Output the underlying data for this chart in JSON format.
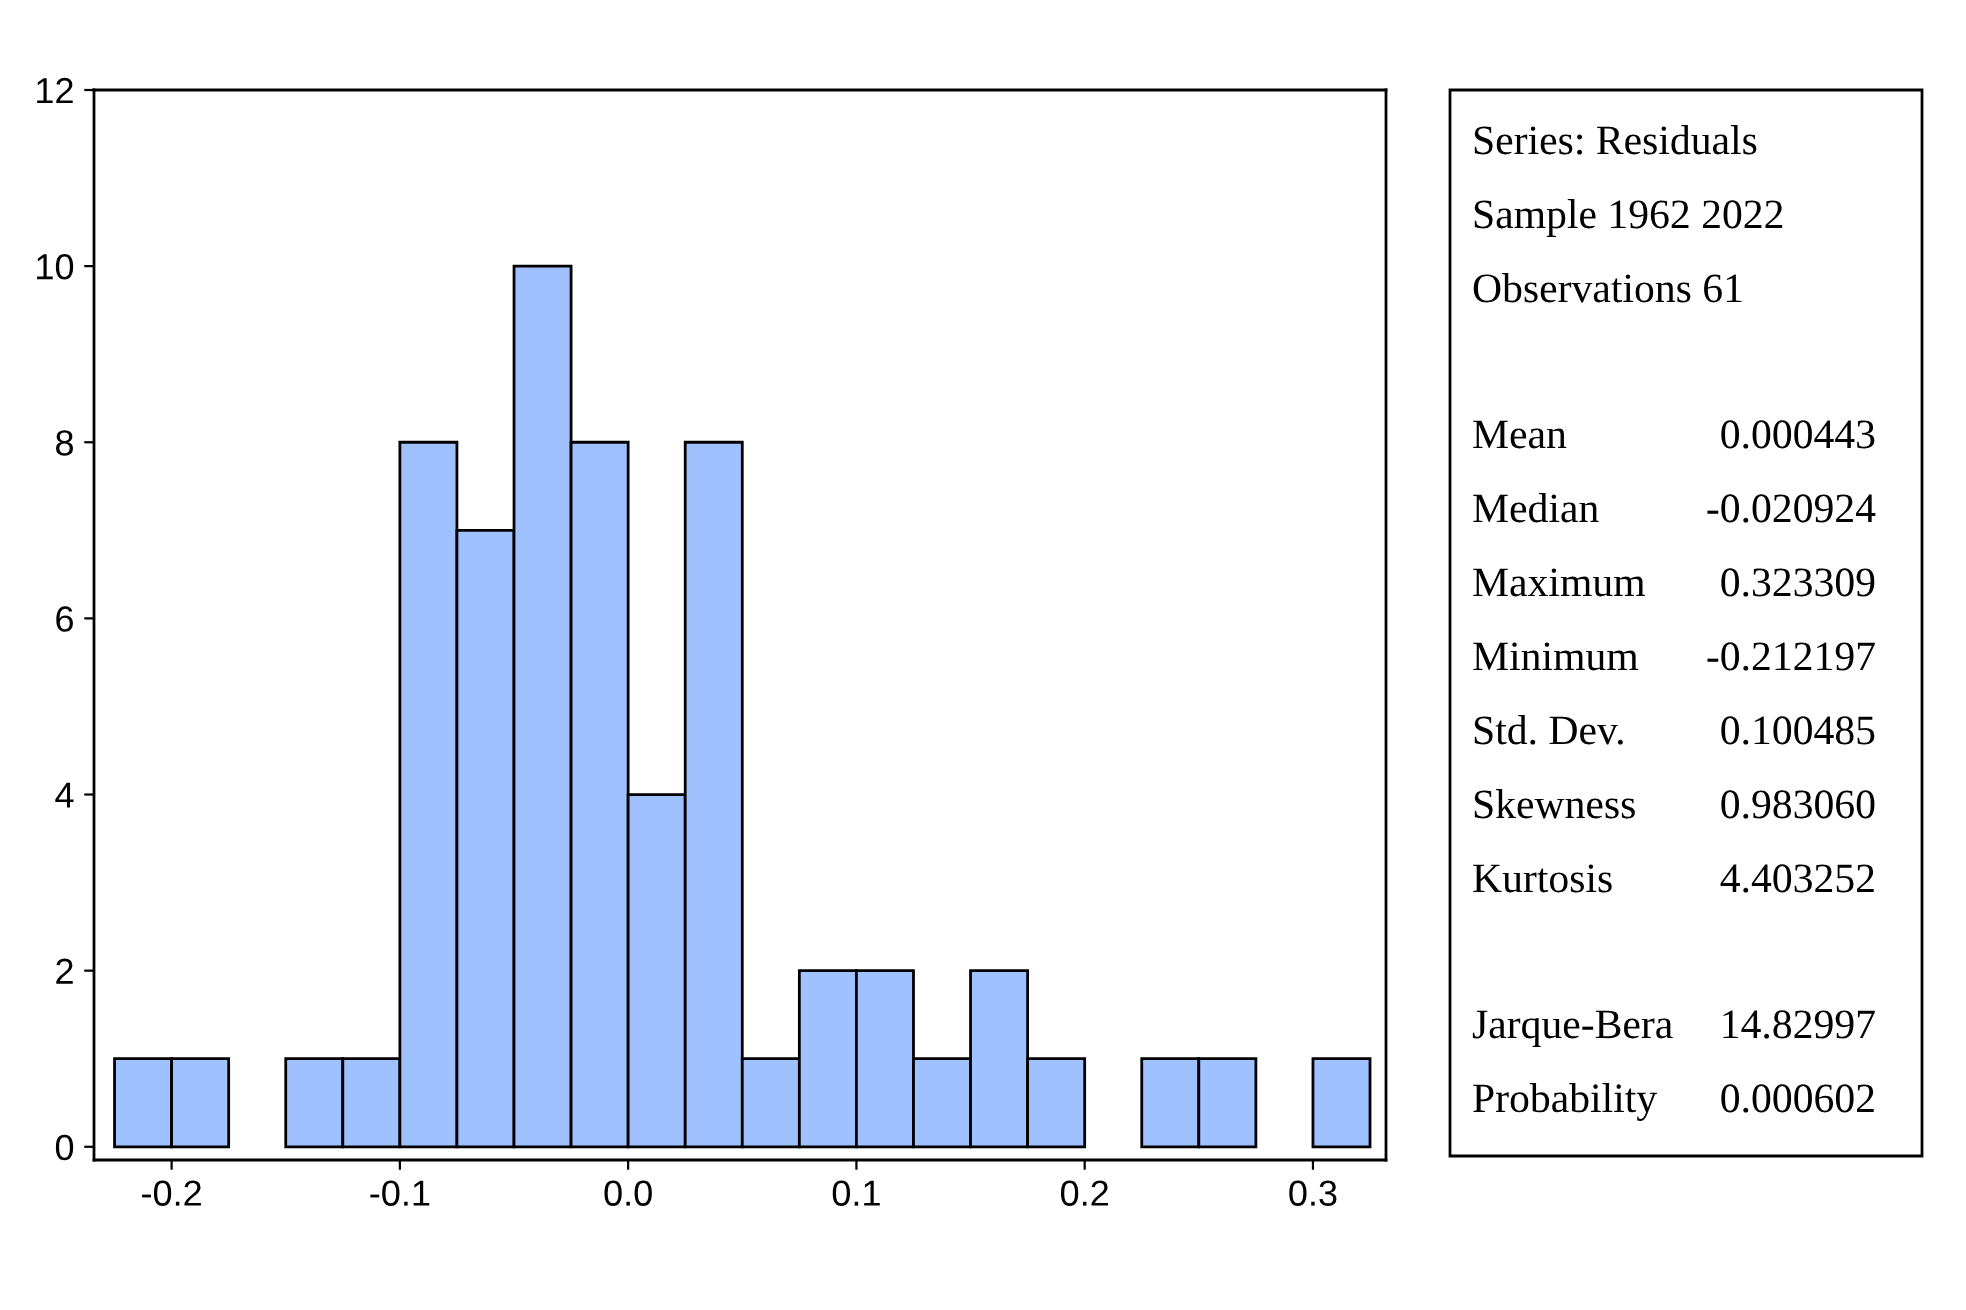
{
  "chart_data": {
    "type": "histogram",
    "bins": [
      -0.225,
      -0.2,
      -0.175,
      -0.15,
      -0.125,
      -0.1,
      -0.075,
      -0.05,
      -0.025,
      0.0,
      0.025,
      0.05,
      0.075,
      0.1,
      0.125,
      0.15,
      0.175,
      0.2,
      0.225,
      0.25,
      0.275,
      0.3,
      0.325
    ],
    "values": [
      1,
      1,
      0,
      1,
      1,
      8,
      7,
      10,
      8,
      4,
      8,
      1,
      2,
      2,
      1,
      2,
      1,
      0,
      1,
      1,
      0,
      1
    ],
    "color": "#9fc1ff",
    "xlim": [
      -0.234,
      0.332
    ],
    "ylim": [
      -0.15,
      12
    ],
    "xticks": [
      {
        "value": -0.2,
        "label": "-0.2"
      },
      {
        "value": -0.1,
        "label": "-0.1"
      },
      {
        "value": 0.0,
        "label": "0.0"
      },
      {
        "value": 0.1,
        "label": "0.1"
      },
      {
        "value": 0.2,
        "label": "0.2"
      },
      {
        "value": 0.3,
        "label": "0.3"
      }
    ],
    "yticks": [
      0,
      2,
      4,
      6,
      8,
      10,
      12
    ],
    "grid": false,
    "legend": false,
    "annotations": [
      "Series: Residuals",
      "Sample 1962 2022",
      "Observations 61",
      "Mean 0.000443",
      "Median -0.020924",
      "Maximum 0.323309",
      "Minimum -0.212197",
      "Std. Dev. 0.100485",
      "Skewness 0.983060",
      "Kurtosis 4.403252",
      "Jarque-Bera 14.82997",
      "Probability 0.000602"
    ]
  }
}
